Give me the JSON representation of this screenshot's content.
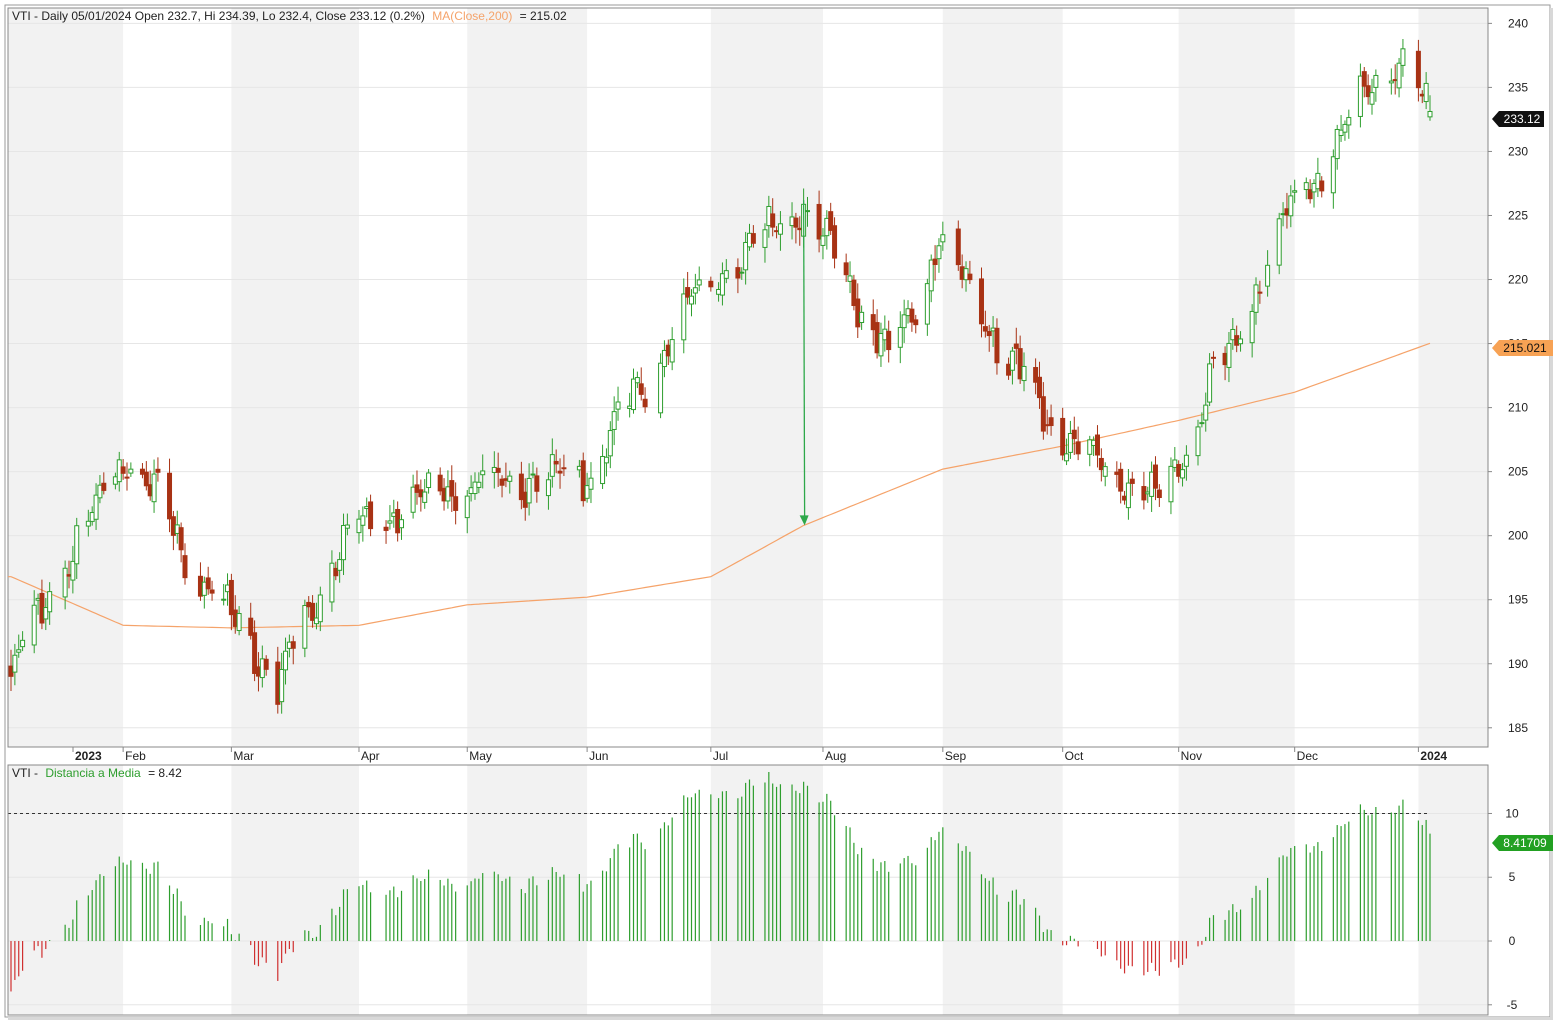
{
  "main_panel": {
    "symbol": "VTI",
    "header_text": "VTI - Daily 05/01/2024 Open 232.7, Hi 234.39, Lo 232.4, Close 233.12 (0.2%)",
    "ma_label": "MA(Close,200)",
    "ma_value_text": "= 215.02",
    "last_price_badge": "233.12",
    "ma_badge": "215.021"
  },
  "indicator_panel": {
    "header_prefix": "VTI -",
    "indicator_name": "Distancia a Media",
    "indicator_value_text": "= 8.42",
    "last_value_badge": "8.41709"
  },
  "colors": {
    "up_candle": "#2e9e2e",
    "down_candle": "#a83214",
    "ma_line": "#f5a36a",
    "hist_positive": "#2e9e2e",
    "hist_negative": "#d03030",
    "arrow": "#2ea84a",
    "price_badge_bg": "#111111",
    "ma_badge_bg": "#f7a254",
    "ind_badge_bg": "#22a022"
  },
  "chart_data": [
    {
      "type": "candlestick",
      "title": "VTI - Daily",
      "x_tick_labels": [
        "2023",
        "Feb",
        "Mar",
        "Apr",
        "May",
        "Jun",
        "Jul",
        "Aug",
        "Sep",
        "Oct",
        "Nov",
        "Dec",
        "2024"
      ],
      "y_tick_labels": [
        "185",
        "190",
        "195",
        "200",
        "205",
        "210",
        "215",
        "220",
        "225",
        "230",
        "235",
        "240"
      ],
      "ylim": [
        183.5,
        241.2
      ],
      "grid": true,
      "month_close_anchors": [
        {
          "date": "2023-01-03",
          "close": 188.8
        },
        {
          "date": "2023-01-12",
          "close": 195.0
        },
        {
          "date": "2023-02-02",
          "close": 206.5
        },
        {
          "date": "2023-02-24",
          "close": 195.5
        },
        {
          "date": "2023-03-13",
          "close": 188.5
        },
        {
          "date": "2023-03-31",
          "close": 200.5
        },
        {
          "date": "2023-04-28",
          "close": 203.8
        },
        {
          "date": "2023-05-31",
          "close": 204.5
        },
        {
          "date": "2023-06-30",
          "close": 219.0
        },
        {
          "date": "2023-07-27",
          "close": 226.0
        },
        {
          "date": "2023-08-18",
          "close": 214.0
        },
        {
          "date": "2023-08-31",
          "close": 222.8
        },
        {
          "date": "2023-09-29",
          "close": 208.5
        },
        {
          "date": "2023-10-27",
          "close": 202.5
        },
        {
          "date": "2023-11-30",
          "close": 225.2
        },
        {
          "date": "2023-12-27",
          "close": 237.8
        },
        {
          "date": "2024-01-05",
          "close": 233.12
        }
      ],
      "last_candle": {
        "date": "2024-01-05",
        "open": 232.7,
        "high": 234.39,
        "low": 232.4,
        "close": 233.12
      },
      "ma200_anchors": [
        {
          "date": "2023-01-03",
          "value": 196.8
        },
        {
          "date": "2023-02-01",
          "value": 193.0
        },
        {
          "date": "2023-03-01",
          "value": 192.8
        },
        {
          "date": "2023-04-03",
          "value": 193.0
        },
        {
          "date": "2023-05-01",
          "value": 194.6
        },
        {
          "date": "2023-06-01",
          "value": 195.2
        },
        {
          "date": "2023-07-03",
          "value": 196.8
        },
        {
          "date": "2023-07-27",
          "value": 200.8
        },
        {
          "date": "2023-09-01",
          "value": 205.2
        },
        {
          "date": "2023-10-02",
          "value": 207.0
        },
        {
          "date": "2023-11-01",
          "value": 209.0
        },
        {
          "date": "2023-12-01",
          "value": 211.2
        },
        {
          "date": "2024-01-05",
          "value": 215.02
        }
      ],
      "annotation_arrow": {
        "from": {
          "date": "2023-07-27",
          "value": 226.2
        },
        "to": {
          "date": "2023-07-27",
          "value": 200.8
        }
      }
    },
    {
      "type": "bar",
      "title": "Distancia a Media",
      "y_tick_labels": [
        "-5",
        "0",
        "5",
        "10"
      ],
      "ylim": [
        -5.8,
        13.8
      ],
      "reference_line": 10,
      "last_value": 8.42
    }
  ]
}
